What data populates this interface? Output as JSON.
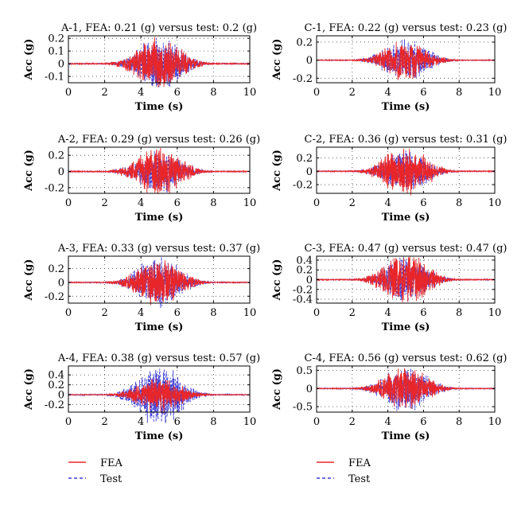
{
  "chart_data": [
    {
      "type": "line",
      "title": "A-1, FEA: 0.21 (g) versus test: 0.2 (g)",
      "xlabel": "Time (s)",
      "ylabel": "Acc (g)",
      "xlim": [
        0,
        10
      ],
      "ylim": [
        -0.15,
        0.22
      ],
      "xticks": [
        0,
        2,
        4,
        6,
        8,
        10
      ],
      "yticks": [
        -0.1,
        0,
        0.1,
        0.2
      ],
      "grid": "dotted",
      "series": [
        {
          "name": "FEA",
          "color": "#e8262a",
          "style": "solid",
          "peak": 0.21
        },
        {
          "name": "Test",
          "color": "#3f3fd8",
          "style": "dashed",
          "peak": 0.2
        }
      ]
    },
    {
      "type": "line",
      "title": "C-1, FEA: 0.22 (g) versus test: 0.23 (g)",
      "xlabel": "Time (s)",
      "ylabel": "Acc (g)",
      "xlim": [
        0,
        10
      ],
      "ylim": [
        -0.25,
        0.27
      ],
      "xticks": [
        0,
        2,
        4,
        6,
        8,
        10
      ],
      "yticks": [
        -0.2,
        0,
        0.2
      ],
      "grid": "dotted",
      "series": [
        {
          "name": "FEA",
          "color": "#e8262a",
          "style": "solid",
          "peak": 0.22
        },
        {
          "name": "Test",
          "color": "#3f3fd8",
          "style": "dashed",
          "peak": 0.23
        }
      ]
    },
    {
      "type": "line",
      "title": "A-2, FEA: 0.29 (g) versus test: 0.26 (g)",
      "xlabel": "Time (s)",
      "ylabel": "Acc (g)",
      "xlim": [
        0,
        10
      ],
      "ylim": [
        -0.27,
        0.3
      ],
      "xticks": [
        0,
        2,
        4,
        6,
        8,
        10
      ],
      "yticks": [
        -0.2,
        0,
        0.2
      ],
      "grid": "dotted",
      "series": [
        {
          "name": "FEA",
          "color": "#e8262a",
          "style": "solid",
          "peak": 0.29
        },
        {
          "name": "Test",
          "color": "#3f3fd8",
          "style": "dashed",
          "peak": 0.26
        }
      ]
    },
    {
      "type": "line",
      "title": "C-2, FEA: 0.36 (g) versus test: 0.31 (g)",
      "xlabel": "Time (s)",
      "ylabel": "Acc (g)",
      "xlim": [
        0,
        10
      ],
      "ylim": [
        -0.33,
        0.36
      ],
      "xticks": [
        0,
        2,
        4,
        6,
        8,
        10
      ],
      "yticks": [
        -0.2,
        0,
        0.2
      ],
      "grid": "dotted",
      "series": [
        {
          "name": "FEA",
          "color": "#e8262a",
          "style": "solid",
          "peak": 0.36
        },
        {
          "name": "Test",
          "color": "#3f3fd8",
          "style": "dashed",
          "peak": 0.31
        }
      ]
    },
    {
      "type": "line",
      "title": "A-3, FEA: 0.33 (g) versus test: 0.37 (g)",
      "xlabel": "Time (s)",
      "ylabel": "Acc (g)",
      "xlim": [
        0,
        10
      ],
      "ylim": [
        -0.3,
        0.38
      ],
      "xticks": [
        0,
        2,
        4,
        6,
        8,
        10
      ],
      "yticks": [
        -0.2,
        0,
        0.2
      ],
      "grid": "dotted",
      "series": [
        {
          "name": "FEA",
          "color": "#e8262a",
          "style": "solid",
          "peak": 0.33
        },
        {
          "name": "Test",
          "color": "#3f3fd8",
          "style": "dashed",
          "peak": 0.37
        }
      ]
    },
    {
      "type": "line",
      "title": "C-3, FEA: 0.47 (g) versus test: 0.47 (g)",
      "xlabel": "Time (s)",
      "ylabel": "Acc (g)",
      "xlim": [
        0,
        10
      ],
      "ylim": [
        -0.48,
        0.48
      ],
      "xticks": [
        0,
        2,
        4,
        6,
        8,
        10
      ],
      "yticks": [
        -0.4,
        -0.2,
        0,
        0.2,
        0.4
      ],
      "grid": "dotted",
      "series": [
        {
          "name": "FEA",
          "color": "#e8262a",
          "style": "solid",
          "peak": 0.47
        },
        {
          "name": "Test",
          "color": "#3f3fd8",
          "style": "dashed",
          "peak": 0.47
        }
      ]
    },
    {
      "type": "line",
      "title": "A-4, FEA: 0.38 (g) versus test: 0.57 (g)",
      "xlabel": "Time (s)",
      "ylabel": "Acc (g)",
      "xlim": [
        0,
        10
      ],
      "ylim": [
        -0.35,
        0.58
      ],
      "xticks": [
        0,
        2,
        4,
        6,
        8,
        10
      ],
      "yticks": [
        -0.2,
        0,
        0.2,
        0.4
      ],
      "grid": "dotted",
      "series": [
        {
          "name": "FEA",
          "color": "#e8262a",
          "style": "solid",
          "peak": 0.38
        },
        {
          "name": "Test",
          "color": "#3f3fd8",
          "style": "dashed",
          "peak": 0.57
        }
      ]
    },
    {
      "type": "line",
      "title": "C-4, FEA: 0.56 (g) versus test: 0.62 (g)",
      "xlabel": "Time (s)",
      "ylabel": "Acc (g)",
      "xlim": [
        0,
        10
      ],
      "ylim": [
        -0.65,
        0.62
      ],
      "xticks": [
        0,
        2,
        4,
        6,
        8,
        10
      ],
      "yticks": [
        -0.5,
        0,
        0.5
      ],
      "grid": "dotted",
      "series": [
        {
          "name": "FEA",
          "color": "#e8262a",
          "style": "solid",
          "peak": 0.56
        },
        {
          "name": "Test",
          "color": "#3f3fd8",
          "style": "dashed",
          "peak": 0.62
        }
      ]
    }
  ],
  "legends": [
    {
      "entries": [
        {
          "label": "FEA",
          "color": "#e8262a",
          "style": "solid"
        },
        {
          "label": "Test",
          "color": "#3f3fd8",
          "style": "dashed"
        }
      ]
    },
    {
      "entries": [
        {
          "label": "FEA",
          "color": "#e8262a",
          "style": "solid"
        },
        {
          "label": "Test",
          "color": "#3f3fd8",
          "style": "dashed"
        }
      ]
    }
  ]
}
